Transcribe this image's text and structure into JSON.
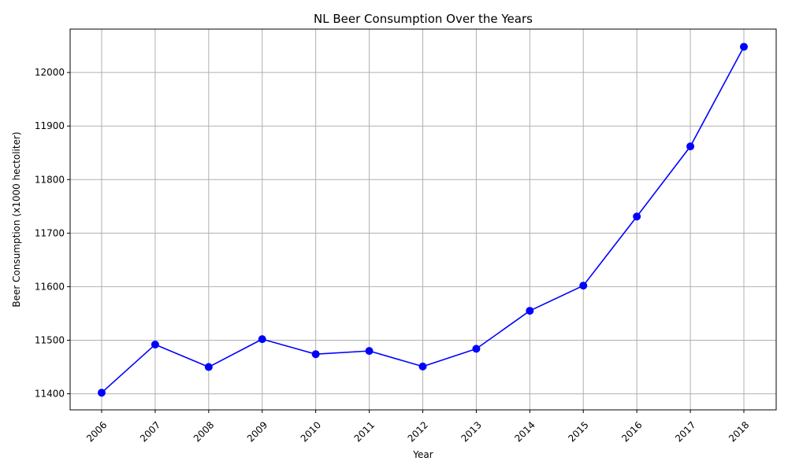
{
  "chart_data": {
    "type": "line",
    "title": "NL Beer Consumption Over the Years",
    "xlabel": "Year",
    "ylabel": "Beer Consumption (x1000 hectoliter)",
    "x": [
      "2006",
      "2007",
      "2008",
      "2009",
      "2010",
      "2011",
      "2012",
      "2013",
      "2014",
      "2015",
      "2016",
      "2017",
      "2018"
    ],
    "series": [
      {
        "values": [
          11402,
          11492,
          11450,
          11502,
          11474,
          11480,
          11451,
          11484,
          11555,
          11602,
          11731,
          11862,
          12048
        ],
        "color": "#0000ff",
        "marker": "circle"
      }
    ],
    "yticks": [
      11400,
      11500,
      11600,
      11700,
      11800,
      11900,
      12000
    ],
    "ylim": [
      11370,
      12081
    ],
    "grid": true,
    "x_tick_rotation": 45,
    "grid_color": "#b0b0b0"
  }
}
